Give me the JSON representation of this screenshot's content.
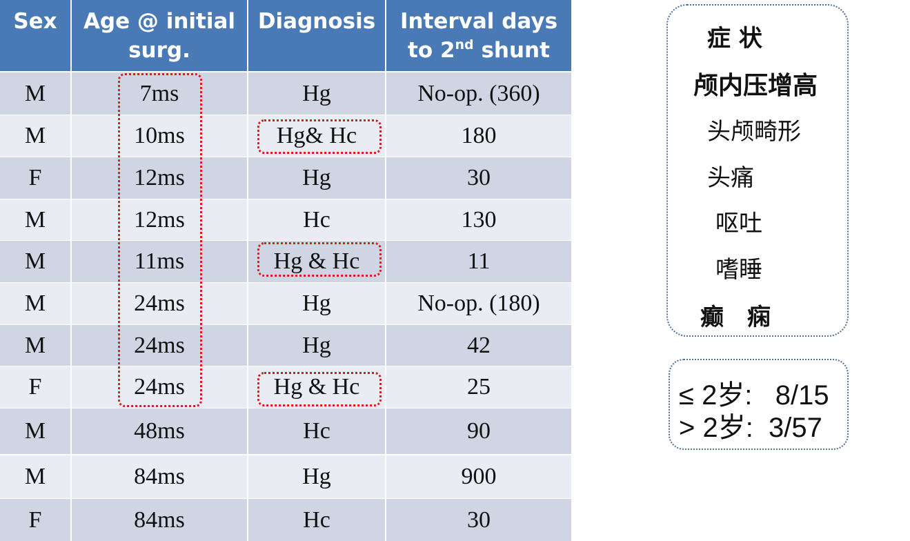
{
  "table": {
    "header": [
      "Sex",
      "Age @ initial surg.",
      "Diagnosis",
      {
        "before": "Interval days",
        "mid": "to 2",
        "sup": "nd",
        "after": " shunt"
      }
    ],
    "rows": [
      [
        "M",
        "7ms",
        "Hg",
        "No-op. (360)"
      ],
      [
        "M",
        "10ms",
        "Hg& Hc",
        "180"
      ],
      [
        "F",
        "12ms",
        "Hg",
        "30"
      ],
      [
        "M",
        "12ms",
        "Hc",
        "130"
      ],
      [
        "M",
        "11ms",
        "Hg & Hc",
        "11"
      ],
      [
        "M",
        "24ms",
        "Hg",
        "No-op. (180)"
      ],
      [
        "M",
        "24ms",
        "Hg",
        "42"
      ],
      [
        "F",
        "24ms",
        "Hg & Hc",
        "25"
      ],
      [
        "M",
        "48ms",
        "Hc",
        "90"
      ],
      [
        "M",
        "84ms",
        "Hg",
        "900"
      ],
      [
        "F",
        "84ms",
        "Hc",
        "30"
      ]
    ]
  },
  "symptoms": {
    "title": "症 状",
    "items": [
      "颅内压增高",
      "头颅畸形",
      "头痛",
      "呕吐",
      "嗜睡",
      "癫　痫"
    ]
  },
  "ratios": [
    "≤ 2岁:   8/15",
    "> 2岁:  3/57"
  ]
}
